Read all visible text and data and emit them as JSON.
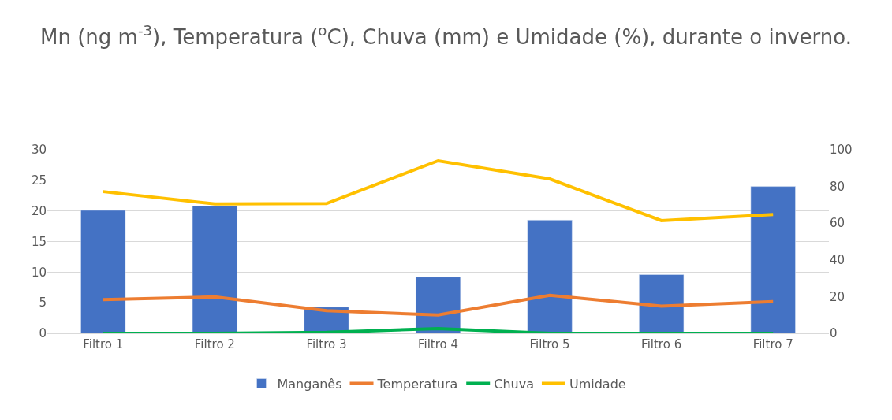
{
  "chart_data": {
    "type": "bar",
    "title": "Mn (ng m$^{-3}$), Temperatura ($^{o}$C), Chuva (mm) e Umidade (%), durante o inverno.",
    "categories": [
      "Filtro 1",
      "Filtro 2",
      "Filtro 3",
      "Filtro 4",
      "Filtro 5",
      "Filtro 6",
      "Filtro 7"
    ],
    "series": [
      {
        "name": "Manganês",
        "color": "#4472c4",
        "values": [
          20.1,
          20.8,
          4.3,
          9.2,
          18.5,
          9.6,
          24.0
        ]
      },
      {
        "name": "Temperatura",
        "type": "line",
        "axis": "y2",
        "color": "#ed7d31",
        "values": [
          18.4,
          19.8,
          12.3,
          10.0,
          20.7,
          14.8,
          17.3
        ]
      },
      {
        "name": "Chuva",
        "type": "line",
        "axis": "y2",
        "color": "#00b050",
        "values": [
          0,
          0,
          0.5,
          2.6,
          0,
          0,
          0
        ]
      },
      {
        "name": "Umidade",
        "type": "line",
        "axis": "y2",
        "color": "#ffc000",
        "values": [
          77.2,
          70.5,
          70.7,
          94,
          84.1,
          61.4,
          64.7
        ]
      }
    ],
    "ylim": [
      0,
      30
    ],
    "yticks": [
      0,
      5,
      10,
      15,
      20,
      25,
      30
    ],
    "y2lim": [
      0,
      100
    ],
    "y2ticks": [
      0,
      20,
      40,
      60,
      80,
      100
    ],
    "grid": "y",
    "legend": "bottom"
  }
}
